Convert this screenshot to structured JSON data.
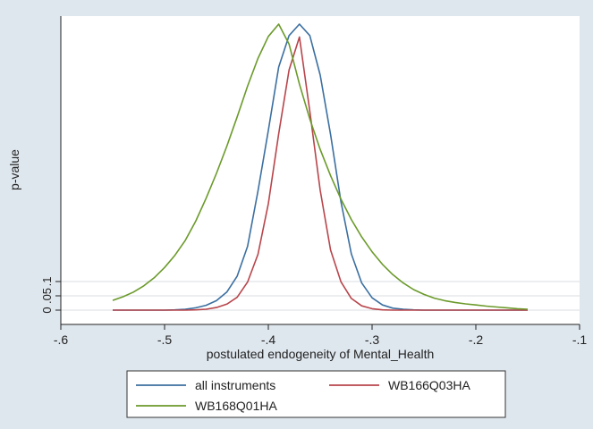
{
  "chart_data": {
    "type": "line",
    "title": "",
    "xlabel": "postulated endogeneity of Mental_Health",
    "ylabel": "p-value",
    "xlim": [
      -0.6,
      -0.1
    ],
    "ylim": [
      0,
      1
    ],
    "x_ticks": [
      {
        "value": -0.6,
        "label": "-.6"
      },
      {
        "value": -0.5,
        "label": "-.5"
      },
      {
        "value": -0.4,
        "label": "-.4"
      },
      {
        "value": -0.3,
        "label": "-.3"
      },
      {
        "value": -0.2,
        "label": "-.2"
      },
      {
        "value": -0.1,
        "label": "-.1"
      }
    ],
    "y_ticks": [
      {
        "value": 0,
        "label": "0"
      },
      {
        "value": 0.05,
        "label": ".05"
      },
      {
        "value": 0.1,
        "label": ".1"
      }
    ],
    "reference_lines_y": [
      0.05,
      0.1
    ],
    "grid": false,
    "legend_position": "bottom",
    "series": [
      {
        "name": "all instruments",
        "color": "#3b6fa0",
        "x": [
          -0.55,
          -0.54,
          -0.53,
          -0.52,
          -0.51,
          -0.5,
          -0.49,
          -0.48,
          -0.47,
          -0.46,
          -0.45,
          -0.44,
          -0.43,
          -0.42,
          -0.41,
          -0.4,
          -0.39,
          -0.38,
          -0.37,
          -0.36,
          -0.35,
          -0.34,
          -0.33,
          -0.32,
          -0.31,
          -0.3,
          -0.29,
          -0.28,
          -0.27,
          -0.26,
          -0.25,
          -0.24,
          -0.23,
          -0.22,
          -0.21,
          -0.2,
          -0.19,
          -0.18,
          -0.17,
          -0.16,
          -0.15
        ],
        "y": [
          0.0,
          0.0,
          0.0,
          0.0,
          0.0,
          0.0,
          0.001,
          0.003,
          0.008,
          0.017,
          0.033,
          0.063,
          0.119,
          0.223,
          0.416,
          0.628,
          0.85,
          0.96,
          1.0,
          0.96,
          0.822,
          0.614,
          0.379,
          0.197,
          0.095,
          0.043,
          0.018,
          0.007,
          0.003,
          0.001,
          0.0,
          0.0,
          0.0,
          0.0,
          0.0,
          0.0,
          0.0,
          0.0,
          0.0,
          0.0,
          0.0
        ]
      },
      {
        "name": "WB166Q03HA",
        "color": "#b8454b",
        "x": [
          -0.55,
          -0.54,
          -0.53,
          -0.52,
          -0.51,
          -0.5,
          -0.49,
          -0.48,
          -0.47,
          -0.46,
          -0.45,
          -0.44,
          -0.43,
          -0.42,
          -0.41,
          -0.4,
          -0.39,
          -0.38,
          -0.37,
          -0.36,
          -0.35,
          -0.34,
          -0.33,
          -0.32,
          -0.31,
          -0.3,
          -0.29,
          -0.28,
          -0.27,
          -0.26,
          -0.25,
          -0.24,
          -0.23,
          -0.22,
          -0.21,
          -0.2,
          -0.19,
          -0.18,
          -0.17,
          -0.16,
          -0.15
        ],
        "y": [
          0.0,
          0.0,
          0.0,
          0.0,
          0.0,
          0.0,
          0.0,
          0.0,
          0.001,
          0.003,
          0.009,
          0.021,
          0.045,
          0.098,
          0.195,
          0.372,
          0.617,
          0.84,
          0.955,
          0.695,
          0.419,
          0.21,
          0.099,
          0.041,
          0.015,
          0.005,
          0.001,
          0.0,
          0.0,
          0.0,
          0.0,
          0.0,
          0.0,
          0.0,
          0.0,
          0.0,
          0.0,
          0.0,
          0.0,
          0.0,
          0.0
        ]
      },
      {
        "name": "WB168Q01HA",
        "color": "#6b9a2a",
        "x": [
          -0.55,
          -0.54,
          -0.53,
          -0.52,
          -0.51,
          -0.5,
          -0.49,
          -0.48,
          -0.47,
          -0.46,
          -0.45,
          -0.44,
          -0.43,
          -0.42,
          -0.41,
          -0.4,
          -0.39,
          -0.38,
          -0.37,
          -0.36,
          -0.35,
          -0.34,
          -0.33,
          -0.32,
          -0.31,
          -0.3,
          -0.29,
          -0.28,
          -0.27,
          -0.26,
          -0.25,
          -0.24,
          -0.23,
          -0.22,
          -0.21,
          -0.2,
          -0.19,
          -0.18,
          -0.17,
          -0.16,
          -0.15
        ],
        "y": [
          0.034,
          0.047,
          0.063,
          0.085,
          0.113,
          0.149,
          0.192,
          0.244,
          0.311,
          0.391,
          0.478,
          0.573,
          0.676,
          0.783,
          0.88,
          0.957,
          1.0,
          0.93,
          0.79,
          0.668,
          0.562,
          0.47,
          0.388,
          0.317,
          0.256,
          0.204,
          0.16,
          0.124,
          0.095,
          0.072,
          0.055,
          0.042,
          0.033,
          0.027,
          0.022,
          0.018,
          0.014,
          0.011,
          0.008,
          0.005,
          0.003
        ]
      }
    ]
  }
}
